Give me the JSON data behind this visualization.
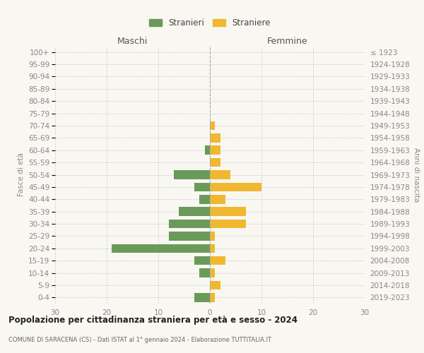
{
  "age_groups": [
    "100+",
    "95-99",
    "90-94",
    "85-89",
    "80-84",
    "75-79",
    "70-74",
    "65-69",
    "60-64",
    "55-59",
    "50-54",
    "45-49",
    "40-44",
    "35-39",
    "30-34",
    "25-29",
    "20-24",
    "15-19",
    "10-14",
    "5-9",
    "0-4"
  ],
  "birth_years": [
    "≤ 1923",
    "1924-1928",
    "1929-1933",
    "1934-1938",
    "1939-1943",
    "1944-1948",
    "1949-1953",
    "1954-1958",
    "1959-1963",
    "1964-1968",
    "1969-1973",
    "1974-1978",
    "1979-1983",
    "1984-1988",
    "1989-1993",
    "1994-1998",
    "1999-2003",
    "2004-2008",
    "2009-2013",
    "2014-2018",
    "2019-2023"
  ],
  "maschi": [
    0,
    0,
    0,
    0,
    0,
    0,
    0,
    0,
    1,
    0,
    7,
    3,
    2,
    6,
    8,
    8,
    19,
    3,
    2,
    0,
    3
  ],
  "femmine": [
    0,
    0,
    0,
    0,
    0,
    0,
    1,
    2,
    2,
    2,
    4,
    10,
    3,
    7,
    7,
    1,
    1,
    3,
    1,
    2,
    1
  ],
  "maschi_color": "#6a9a5a",
  "femmine_color": "#f0b830",
  "xlim": 30,
  "title": "Popolazione per cittadinanza straniera per età e sesso - 2024",
  "subtitle": "COMUNE DI SARACENA (CS) - Dati ISTAT al 1° gennaio 2024 - Elaborazione TUTTITALIA.IT",
  "ylabel_left": "Fasce di età",
  "ylabel_right": "Anni di nascita",
  "xlabel_maschi": "Maschi",
  "xlabel_femmine": "Femmine",
  "legend_stranieri": "Stranieri",
  "legend_straniere": "Straniere",
  "bg_color": "#f9f7f2",
  "tick_color": "#888888",
  "grid_color": "#cccccc",
  "bar_height": 0.72
}
